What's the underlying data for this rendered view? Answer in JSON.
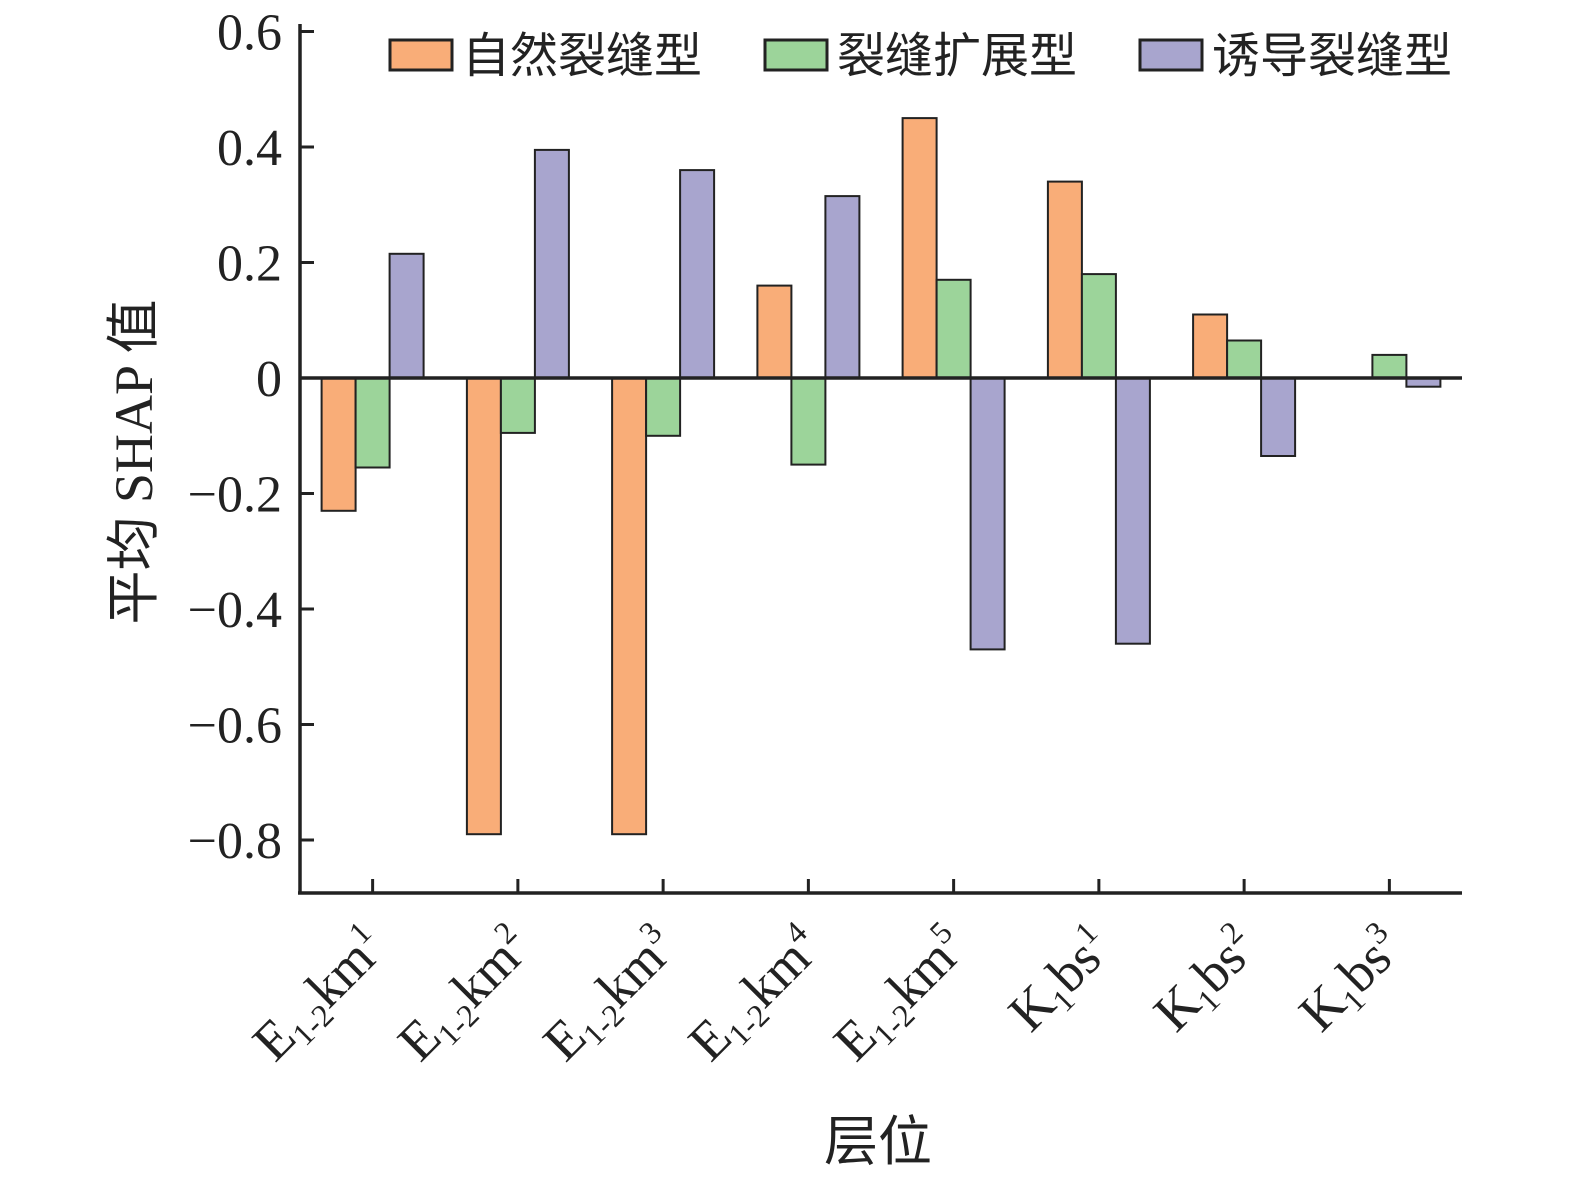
{
  "chart_data": {
    "type": "bar",
    "title": "",
    "xlabel": "层位",
    "ylabel": "平均 SHAP 值",
    "ylim": [
      -0.9,
      0.6
    ],
    "yticks": [
      0.6,
      0.4,
      0.2,
      0,
      -0.2,
      -0.4,
      -0.6,
      -0.8
    ],
    "ytick_labels": [
      "0.6",
      "0.4",
      "0.2",
      "0",
      "−0.2",
      "−0.4",
      "−0.6",
      "−0.8"
    ],
    "grid": false,
    "legend_position": "top-right",
    "categories": [
      "E1-2km1",
      "E1-2km2",
      "E1-2km3",
      "E1-2km4",
      "E1-2km5",
      "K1bs1",
      "K1bs2",
      "K1bs3"
    ],
    "category_labels": [
      {
        "base": "E",
        "sub": "1-2",
        "main": "km",
        "sup": "1"
      },
      {
        "base": "E",
        "sub": "1-2",
        "main": "km",
        "sup": "2"
      },
      {
        "base": "E",
        "sub": "1-2",
        "main": "km",
        "sup": "3"
      },
      {
        "base": "E",
        "sub": "1-2",
        "main": "km",
        "sup": "4"
      },
      {
        "base": "E",
        "sub": "1-2",
        "main": "km",
        "sup": "5"
      },
      {
        "base": "K",
        "sub": "1",
        "main": "bs",
        "sup": "1"
      },
      {
        "base": "K",
        "sub": "1",
        "main": "bs",
        "sup": "2"
      },
      {
        "base": "K",
        "sub": "1",
        "main": "bs",
        "sup": "3"
      }
    ],
    "series": [
      {
        "name": "自然裂缝型",
        "color": "#F9AD78",
        "values": [
          -0.23,
          -0.79,
          -0.79,
          0.16,
          0.45,
          0.34,
          0.11,
          0.0
        ]
      },
      {
        "name": "裂缝扩展型",
        "color": "#9CD49A",
        "values": [
          -0.155,
          -0.095,
          -0.1,
          -0.15,
          0.17,
          0.18,
          0.065,
          0.04
        ]
      },
      {
        "name": "诱导裂缝型",
        "color": "#A8A5CE",
        "values": [
          0.215,
          0.395,
          0.36,
          0.315,
          -0.47,
          -0.46,
          -0.135,
          -0.015
        ]
      }
    ]
  }
}
